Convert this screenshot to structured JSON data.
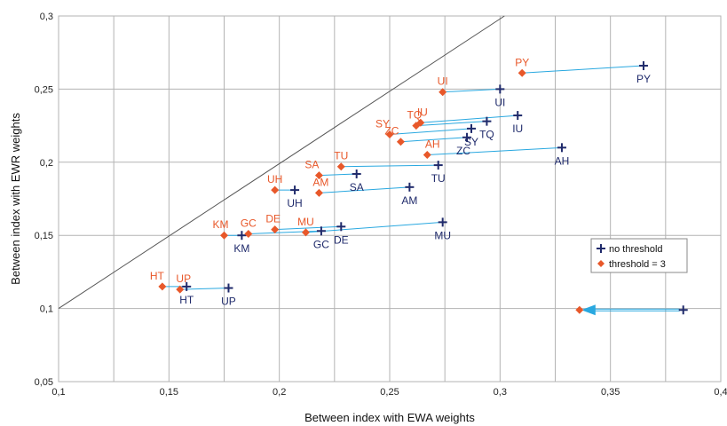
{
  "chart_data": {
    "type": "scatter",
    "xlabel": "Between index with EWA weights",
    "ylabel": "Between index with EWR weights",
    "xlim": [
      0.1,
      0.4
    ],
    "ylim": [
      0.05,
      0.3
    ],
    "x_ticks": [
      0.1,
      0.15,
      0.2,
      0.25,
      0.3,
      0.35,
      0.4
    ],
    "y_ticks": [
      0.05,
      0.1,
      0.15,
      0.2,
      0.25,
      0.3
    ],
    "x_tick_labels": [
      "0,1",
      "0,15",
      "0,2",
      "0,25",
      "0,3",
      "0,35",
      "0,4"
    ],
    "y_tick_labels": [
      "0,05",
      "0,1",
      "0,15",
      "0,2",
      "0,25",
      "0,3"
    ],
    "grid": true,
    "diagonal_line": true,
    "legend": {
      "position": "right",
      "entries": [
        "no threshold",
        "threshold = 3"
      ]
    },
    "colors": {
      "no_threshold": "#1f2a6b",
      "threshold": "#e8582a",
      "connector": "#29a8e0",
      "grid": "#b3b3b3",
      "diagonal": "#555555"
    },
    "series": [
      {
        "name": "no threshold",
        "marker": "cross",
        "points": [
          {
            "label": "PY",
            "x": 0.365,
            "y": 0.266
          },
          {
            "label": "UI",
            "x": 0.3,
            "y": 0.25
          },
          {
            "label": "IU",
            "x": 0.308,
            "y": 0.232
          },
          {
            "label": "TQ",
            "x": 0.294,
            "y": 0.228
          },
          {
            "label": "SY",
            "x": 0.287,
            "y": 0.223
          },
          {
            "label": "ZC",
            "x": 0.285,
            "y": 0.217
          },
          {
            "label": "AH",
            "x": 0.328,
            "y": 0.21
          },
          {
            "label": "TU",
            "x": 0.272,
            "y": 0.198
          },
          {
            "label": "SA",
            "x": 0.235,
            "y": 0.192
          },
          {
            "label": "AM",
            "x": 0.259,
            "y": 0.183
          },
          {
            "label": "UH",
            "x": 0.207,
            "y": 0.181
          },
          {
            "label": "MU",
            "x": 0.274,
            "y": 0.159
          },
          {
            "label": "DE",
            "x": 0.228,
            "y": 0.156
          },
          {
            "label": "GC",
            "x": 0.219,
            "y": 0.153
          },
          {
            "label": "KM",
            "x": 0.183,
            "y": 0.15
          },
          {
            "label": "HT",
            "x": 0.158,
            "y": 0.115
          },
          {
            "label": "UP",
            "x": 0.177,
            "y": 0.114
          }
        ]
      },
      {
        "name": "threshold = 3",
        "marker": "diamond",
        "points": [
          {
            "label": "PY",
            "x": 0.31,
            "y": 0.261
          },
          {
            "label": "UI",
            "x": 0.274,
            "y": 0.248
          },
          {
            "label": "IU",
            "x": 0.264,
            "y": 0.227
          },
          {
            "label": "TQ",
            "x": 0.262,
            "y": 0.225
          },
          {
            "label": "SY",
            "x": 0.25,
            "y": 0.219
          },
          {
            "label": "ZC",
            "x": 0.255,
            "y": 0.214
          },
          {
            "label": "AH",
            "x": 0.267,
            "y": 0.205
          },
          {
            "label": "TU",
            "x": 0.228,
            "y": 0.197
          },
          {
            "label": "SA",
            "x": 0.218,
            "y": 0.191
          },
          {
            "label": "AM",
            "x": 0.218,
            "y": 0.179
          },
          {
            "label": "UH",
            "x": 0.198,
            "y": 0.181
          },
          {
            "label": "MU",
            "x": 0.212,
            "y": 0.152
          },
          {
            "label": "DE",
            "x": 0.198,
            "y": 0.154
          },
          {
            "label": "GC",
            "x": 0.186,
            "y": 0.151
          },
          {
            "label": "KM",
            "x": 0.175,
            "y": 0.15
          },
          {
            "label": "HT",
            "x": 0.147,
            "y": 0.115
          },
          {
            "label": "UP",
            "x": 0.155,
            "y": 0.113
          }
        ]
      }
    ],
    "label_offsets": {
      "no threshold": {
        "PY": [
          "below",
          0
        ],
        "UI": [
          "below",
          0
        ],
        "IU": [
          "below",
          0
        ],
        "TQ": [
          "below",
          0
        ],
        "SY": [
          "below",
          0
        ],
        "ZC": [
          "below",
          -4
        ],
        "AH": [
          "below",
          0
        ],
        "TU": [
          "below",
          0
        ],
        "SA": [
          "below",
          0
        ],
        "AM": [
          "below",
          0
        ],
        "UH": [
          "below",
          0
        ],
        "MU": [
          "below",
          0
        ],
        "DE": [
          "below",
          0
        ],
        "GC": [
          "below",
          0
        ],
        "KM": [
          "below",
          0
        ],
        "HT": [
          "below",
          0
        ],
        "UP": [
          "below",
          0
        ]
      },
      "threshold = 3": {
        "PY": [
          "above",
          0
        ],
        "UI": [
          "above",
          0
        ],
        "IU": [
          "above",
          2
        ],
        "TQ": [
          "above",
          -2
        ],
        "SY": [
          "above",
          -8
        ],
        "ZC": [
          "above",
          -10
        ],
        "AH": [
          "above",
          6
        ],
        "TU": [
          "above",
          0
        ],
        "SA": [
          "above",
          -8
        ],
        "AM": [
          "above",
          2
        ],
        "UH": [
          "above",
          0
        ],
        "MU": [
          "above",
          0
        ],
        "DE": [
          "above",
          -2
        ],
        "GC": [
          "above",
          0
        ],
        "KM": [
          "above",
          -4
        ],
        "HT": [
          "above",
          -6
        ],
        "UP": [
          "above",
          4
        ]
      }
    },
    "annotation_arrow": {
      "from": {
        "x": 0.383,
        "y": 0.099
      },
      "to": {
        "x": 0.336,
        "y": 0.099
      },
      "start_marker": "cross",
      "end_marker": "diamond"
    }
  }
}
